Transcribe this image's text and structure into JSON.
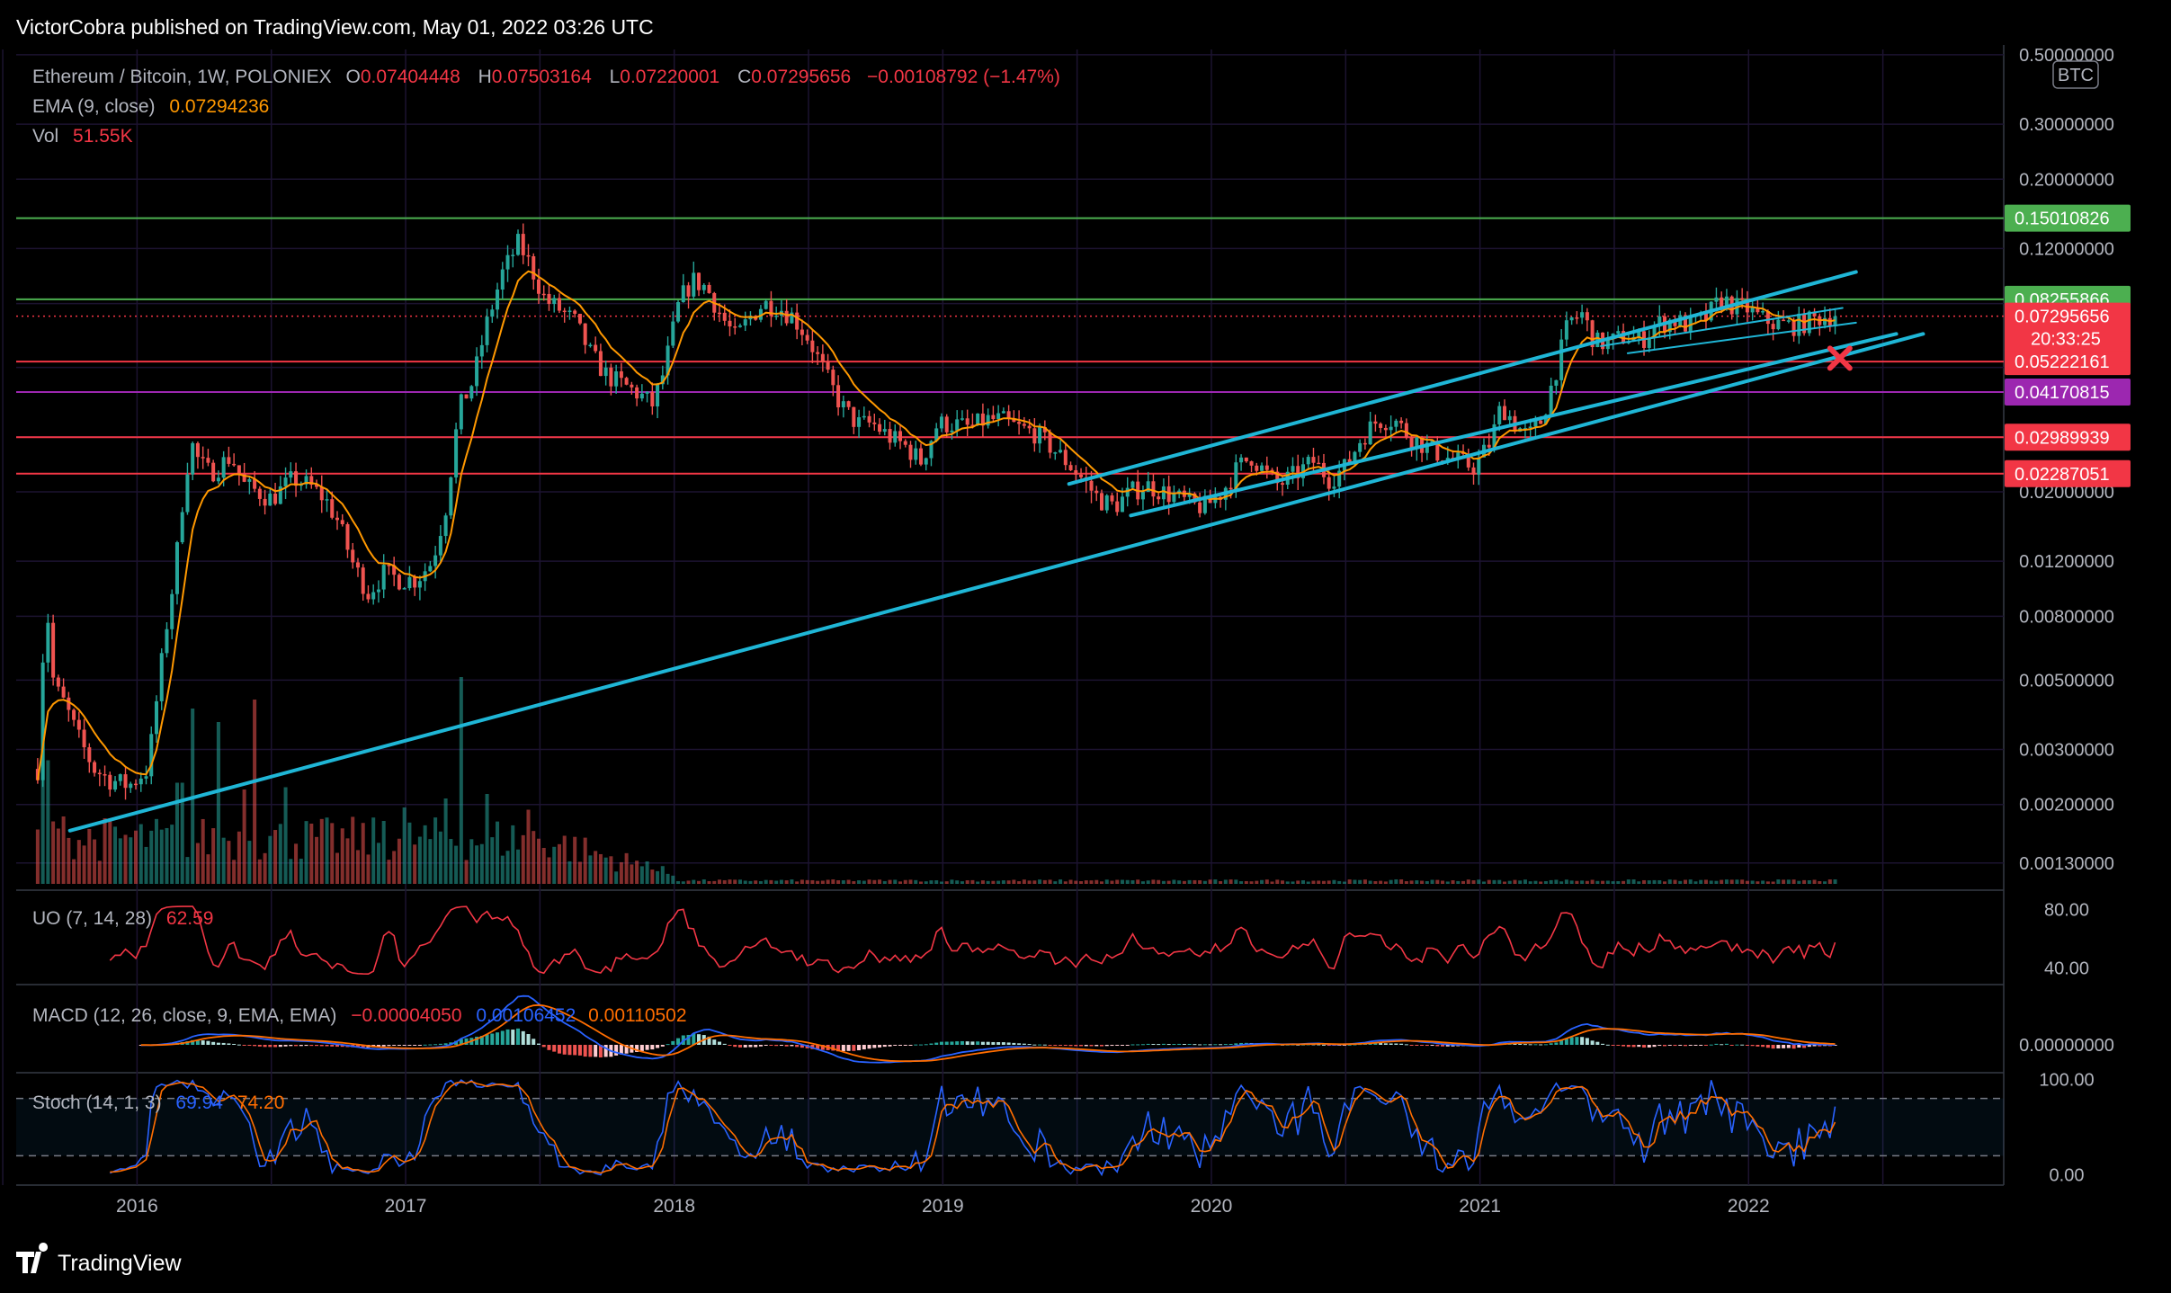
{
  "header": {
    "published_text": "VictorCobra published on TradingView.com, May 01, 2022 03:26 UTC"
  },
  "footer": {
    "brand": "TradingView"
  },
  "legend": {
    "symbol": "Ethereum / Bitcoin, 1W, POLONIEX",
    "o_label": "O",
    "o_value": "0.07404448",
    "h_label": "H",
    "h_value": "0.07503164",
    "l_label": "L",
    "l_value": "0.07220001",
    "c_label": "C",
    "c_value": "0.07295656",
    "change": "−0.00108792 (−1.47%)",
    "ema_label": "EMA (9, close)",
    "ema_value": "0.07294236",
    "vol_label": "Vol",
    "vol_value": "51.55K"
  },
  "colors": {
    "up": "#26a69a",
    "down": "#ef5350",
    "ema": "#ff9800",
    "trend": "#1fb6d6",
    "green_level": "#4caf50",
    "red_level": "#f23645",
    "purple_level": "#9c27b0",
    "grid": "#1c1330",
    "macd": "#2962ff",
    "signal": "#ff6d00",
    "uo": "#f23645",
    "stoch_k": "#2962ff",
    "stoch_d": "#ff6d00"
  },
  "chart_data": {
    "type": "candlestick",
    "symbol": "ETH/BTC",
    "interval": "1W",
    "scale": "log",
    "currency_badge": "BTC",
    "price_axis_ticks": [
      "0.50000000",
      "0.30000000",
      "0.20000000",
      "0.12000000",
      "0.08000000",
      "0.05000000",
      "0.03000000",
      "0.02000000",
      "0.01200000",
      "0.00800000",
      "0.00500000",
      "0.00300000",
      "0.00200000",
      "0.00130000"
    ],
    "price_axis_values": [
      0.5,
      0.3,
      0.2,
      0.12,
      0.08,
      0.05,
      0.03,
      0.02,
      0.012,
      0.008,
      0.005,
      0.003,
      0.002,
      0.0013
    ],
    "time_axis_ticks": [
      "2016",
      "2017",
      "2018",
      "2019",
      "2020",
      "2021",
      "2022"
    ],
    "time_axis_values": [
      2016.0,
      2017.0,
      2018.0,
      2019.0,
      2020.0,
      2021.0,
      2022.0
    ],
    "x_range": [
      2015.55,
      2022.95
    ],
    "y_range": [
      0.0011,
      0.52
    ],
    "price_path": [
      [
        2015.63,
        0.0026
      ],
      [
        2015.66,
        0.0095
      ],
      [
        2015.69,
        0.0048
      ],
      [
        2015.73,
        0.0042
      ],
      [
        2015.78,
        0.0033
      ],
      [
        2015.84,
        0.0026
      ],
      [
        2015.9,
        0.0024
      ],
      [
        2015.97,
        0.0023
      ],
      [
        2016.04,
        0.0026
      ],
      [
        2016.08,
        0.0048
      ],
      [
        2016.11,
        0.0075
      ],
      [
        2016.14,
        0.011
      ],
      [
        2016.17,
        0.019
      ],
      [
        2016.2,
        0.029
      ],
      [
        2016.23,
        0.025
      ],
      [
        2016.27,
        0.023
      ],
      [
        2016.3,
        0.024
      ],
      [
        2016.35,
        0.026
      ],
      [
        2016.4,
        0.021
      ],
      [
        2016.45,
        0.02
      ],
      [
        2016.5,
        0.019
      ],
      [
        2016.58,
        0.022
      ],
      [
        2016.64,
        0.021
      ],
      [
        2016.7,
        0.019
      ],
      [
        2016.75,
        0.016
      ],
      [
        2016.8,
        0.012
      ],
      [
        2016.86,
        0.0095
      ],
      [
        2016.92,
        0.011
      ],
      [
        2016.98,
        0.0105
      ],
      [
        2017.04,
        0.0105
      ],
      [
        2017.1,
        0.012
      ],
      [
        2017.15,
        0.018
      ],
      [
        2017.2,
        0.037
      ],
      [
        2017.25,
        0.045
      ],
      [
        2017.3,
        0.068
      ],
      [
        2017.36,
        0.1
      ],
      [
        2017.42,
        0.125
      ],
      [
        2017.46,
        0.108
      ],
      [
        2017.52,
        0.082
      ],
      [
        2017.58,
        0.076
      ],
      [
        2017.63,
        0.07
      ],
      [
        2017.69,
        0.055
      ],
      [
        2017.75,
        0.047
      ],
      [
        2017.81,
        0.044
      ],
      [
        2017.87,
        0.041
      ],
      [
        2017.92,
        0.038
      ],
      [
        2017.96,
        0.048
      ],
      [
        2018.02,
        0.082
      ],
      [
        2018.07,
        0.095
      ],
      [
        2018.12,
        0.09
      ],
      [
        2018.18,
        0.072
      ],
      [
        2018.23,
        0.062
      ],
      [
        2018.28,
        0.072
      ],
      [
        2018.33,
        0.08
      ],
      [
        2018.38,
        0.079
      ],
      [
        2018.44,
        0.073
      ],
      [
        2018.5,
        0.062
      ],
      [
        2018.56,
        0.048
      ],
      [
        2018.62,
        0.038
      ],
      [
        2018.68,
        0.033
      ],
      [
        2018.74,
        0.033
      ],
      [
        2018.8,
        0.03
      ],
      [
        2018.86,
        0.028
      ],
      [
        2018.92,
        0.025
      ],
      [
        2018.98,
        0.033
      ],
      [
        2019.04,
        0.033
      ],
      [
        2019.1,
        0.032
      ],
      [
        2019.16,
        0.034
      ],
      [
        2019.22,
        0.034
      ],
      [
        2019.28,
        0.032
      ],
      [
        2019.34,
        0.031
      ],
      [
        2019.4,
        0.028
      ],
      [
        2019.46,
        0.025
      ],
      [
        2019.52,
        0.022
      ],
      [
        2019.58,
        0.019
      ],
      [
        2019.64,
        0.018
      ],
      [
        2019.7,
        0.02
      ],
      [
        2019.76,
        0.021
      ],
      [
        2019.82,
        0.02
      ],
      [
        2019.88,
        0.019
      ],
      [
        2019.94,
        0.018
      ],
      [
        2019.98,
        0.018
      ],
      [
        2020.04,
        0.02
      ],
      [
        2020.1,
        0.024
      ],
      [
        2020.15,
        0.026
      ],
      [
        2020.2,
        0.023
      ],
      [
        2020.25,
        0.021
      ],
      [
        2020.32,
        0.023
      ],
      [
        2020.38,
        0.025
      ],
      [
        2020.44,
        0.022
      ],
      [
        2020.5,
        0.024
      ],
      [
        2020.56,
        0.03
      ],
      [
        2020.62,
        0.034
      ],
      [
        2020.68,
        0.034
      ],
      [
        2020.74,
        0.03
      ],
      [
        2020.8,
        0.028
      ],
      [
        2020.86,
        0.026
      ],
      [
        2020.92,
        0.025
      ],
      [
        2020.98,
        0.024
      ],
      [
        2021.04,
        0.029
      ],
      [
        2021.08,
        0.038
      ],
      [
        2021.13,
        0.033
      ],
      [
        2021.18,
        0.03
      ],
      [
        2021.23,
        0.034
      ],
      [
        2021.28,
        0.048
      ],
      [
        2021.33,
        0.07
      ],
      [
        2021.38,
        0.074
      ],
      [
        2021.43,
        0.06
      ],
      [
        2021.48,
        0.06
      ],
      [
        2021.54,
        0.063
      ],
      [
        2021.6,
        0.061
      ],
      [
        2021.66,
        0.069
      ],
      [
        2021.72,
        0.071
      ],
      [
        2021.78,
        0.068
      ],
      [
        2021.84,
        0.072
      ],
      [
        2021.9,
        0.083
      ],
      [
        2021.95,
        0.078
      ],
      [
        2022.0,
        0.077
      ],
      [
        2022.04,
        0.072
      ],
      [
        2022.1,
        0.069
      ],
      [
        2022.16,
        0.068
      ],
      [
        2022.22,
        0.07
      ],
      [
        2022.28,
        0.073
      ],
      [
        2022.33,
        0.073
      ]
    ],
    "ema_lag_weeks": 9,
    "horizontal_levels": [
      {
        "label": "0.15010826",
        "value": 0.15010826,
        "color": "#4caf50"
      },
      {
        "label": "0.08255866",
        "value": 0.08255866,
        "color": "#4caf50"
      },
      {
        "label": "0.05222161",
        "value": 0.05222161,
        "color": "#f23645"
      },
      {
        "label": "0.04170815",
        "value": 0.04170815,
        "color": "#9c27b0"
      },
      {
        "label": "0.02989939",
        "value": 0.02989939,
        "color": "#f23645"
      },
      {
        "label": "0.02287051",
        "value": 0.02287051,
        "color": "#f23645"
      }
    ],
    "last_price": {
      "label": "0.07295656",
      "value": 0.07295656,
      "countdown": "20:33:25"
    },
    "trendlines": [
      {
        "name": "long-term-support",
        "from": [
          2015.75,
          0.00165
        ],
        "to": [
          2022.65,
          0.064
        ]
      },
      {
        "name": "channel-upper",
        "from": [
          2019.47,
          0.0212
        ],
        "to": [
          2022.4,
          0.101
        ]
      },
      {
        "name": "channel-lower",
        "from": [
          2019.7,
          0.0168
        ],
        "to": [
          2022.55,
          0.064
        ]
      },
      {
        "name": "wedge-upper",
        "from": [
          2021.45,
          0.0585
        ],
        "to": [
          2022.35,
          0.0775
        ]
      },
      {
        "name": "wedge-lower",
        "from": [
          2021.55,
          0.0555
        ],
        "to": [
          2022.4,
          0.0695
        ]
      }
    ],
    "marker": {
      "type": "x",
      "x": 2022.34,
      "y": 0.0535,
      "color": "#f23645"
    },
    "volume_spikes": [
      [
        2015.66,
        0.55
      ],
      [
        2015.72,
        0.3
      ],
      [
        2016.16,
        0.45
      ],
      [
        2016.2,
        0.78
      ],
      [
        2016.3,
        0.72
      ],
      [
        2016.4,
        0.42
      ],
      [
        2016.44,
        0.82
      ],
      [
        2016.55,
        0.43
      ],
      [
        2016.92,
        0.28
      ],
      [
        2017.0,
        0.34
      ],
      [
        2017.15,
        0.38
      ],
      [
        2017.2,
        0.92
      ],
      [
        2017.3,
        0.4
      ],
      [
        2017.45,
        0.33
      ],
      [
        2017.9,
        0.1
      ]
    ],
    "volume_label": "Vol",
    "uo": {
      "name": "UO (7, 14, 28)",
      "value": "62.59",
      "ticks": [
        "80.00",
        "40.00"
      ],
      "tick_values": [
        80,
        40
      ],
      "range": [
        30,
        90
      ],
      "last": 62.59
    },
    "macd": {
      "name": "MACD (12, 26, close, 9, EMA, EMA)",
      "hist": "−0.00004050",
      "macd": "0.00106452",
      "signal": "0.00110502",
      "ticks": [
        "0.00000000"
      ]
    },
    "stoch": {
      "name": "Stoch (14, 1, 3)",
      "k": "69.94",
      "d": "74.20",
      "ticks": [
        "100.00",
        "0.00"
      ],
      "tick_values": [
        100,
        0
      ],
      "bands": [
        80,
        20
      ],
      "range": [
        -5,
        105
      ]
    }
  }
}
